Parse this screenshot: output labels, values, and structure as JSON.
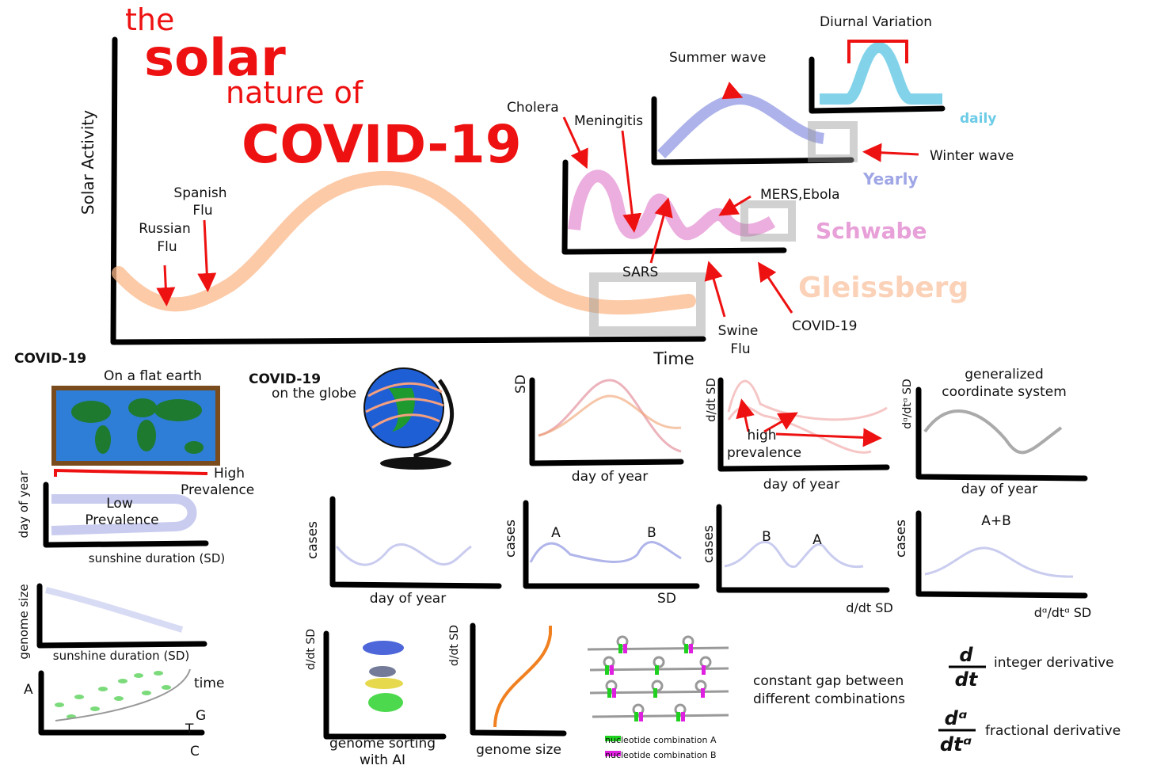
{
  "title": {
    "the": "the",
    "solar": "solar",
    "nature_of": "nature of",
    "covid": "COVID-19"
  },
  "main_chart": {
    "y_label": "Solar Activity",
    "x_label": "Time",
    "russian_flu": [
      "Russian",
      "Flu"
    ],
    "spanish_flu": [
      "Spanish",
      "Flu"
    ],
    "cholera": "Cholera",
    "meningitis": "Meningitis",
    "summer_wave": "Summer wave",
    "diurnal_variation": "Diurnal Variation",
    "daily": "daily",
    "winter_wave": "Winter wave",
    "yearly": "Yearly",
    "mers_ebola": "MERS,Ebola",
    "schwabe": "Schwabe",
    "sars": "SARS",
    "gleissberg": "Gleissberg",
    "swine_flu": [
      "Swine",
      "Flu"
    ],
    "covid": "COVID-19"
  },
  "flat_earth": {
    "title": "COVID-19",
    "subtitle": "On a flat earth",
    "high_prevalence": [
      "High",
      "Prevalence"
    ],
    "low_prevalence": [
      "Low",
      "Prevalence"
    ],
    "y_label": "day of year",
    "x_label": "sunshine duration (SD)"
  },
  "genome_chart": {
    "y_label": "genome size",
    "x_label": "sunshine duration (SD)"
  },
  "time_chart": {
    "a": "A",
    "time": "time",
    "g": "G",
    "t": "T",
    "c": "C"
  },
  "globe": {
    "title": "COVID-19",
    "subtitle": "on the globe"
  },
  "panels": [
    {
      "y_label": "SD",
      "x_label": "day of year"
    },
    {
      "y_label": "d/dt SD",
      "x_label": "day of year",
      "note": [
        "high",
        "prevalence"
      ]
    },
    {
      "y_label": "dᵅ/dtᵅ SD",
      "x_label": "day of year",
      "title": [
        "generalized",
        "coordinate system"
      ]
    },
    {
      "y_label": "cases",
      "x_label": "day of year"
    },
    {
      "y_label": "cases",
      "x_label": "SD",
      "peaks": [
        "A",
        "B"
      ]
    },
    {
      "y_label": "cases",
      "x_label": "d/dt SD",
      "peaks": [
        "B",
        "A"
      ]
    },
    {
      "y_label": "cases",
      "x_label": "dᵅ/dtᵅ SD",
      "peaks": [
        "A+B"
      ]
    },
    {
      "y_label": "d/dt SD",
      "x_label": [
        "genome sorting",
        "with AI"
      ]
    },
    {
      "y_label": "d/dt SD",
      "x_label": "genome size"
    }
  ],
  "nucleotides": {
    "legend_a": "nucleotide combination A",
    "legend_b": "nucleotide combination B",
    "note": [
      "constant gap between",
      "different combinations"
    ]
  },
  "derivatives": {
    "integer_num": "d",
    "integer_den": "dt",
    "integer_label": "integer derivative",
    "fractional_num": "dᵅ",
    "fractional_den": "dtᵅ",
    "fractional_label": "fractional derivative"
  }
}
